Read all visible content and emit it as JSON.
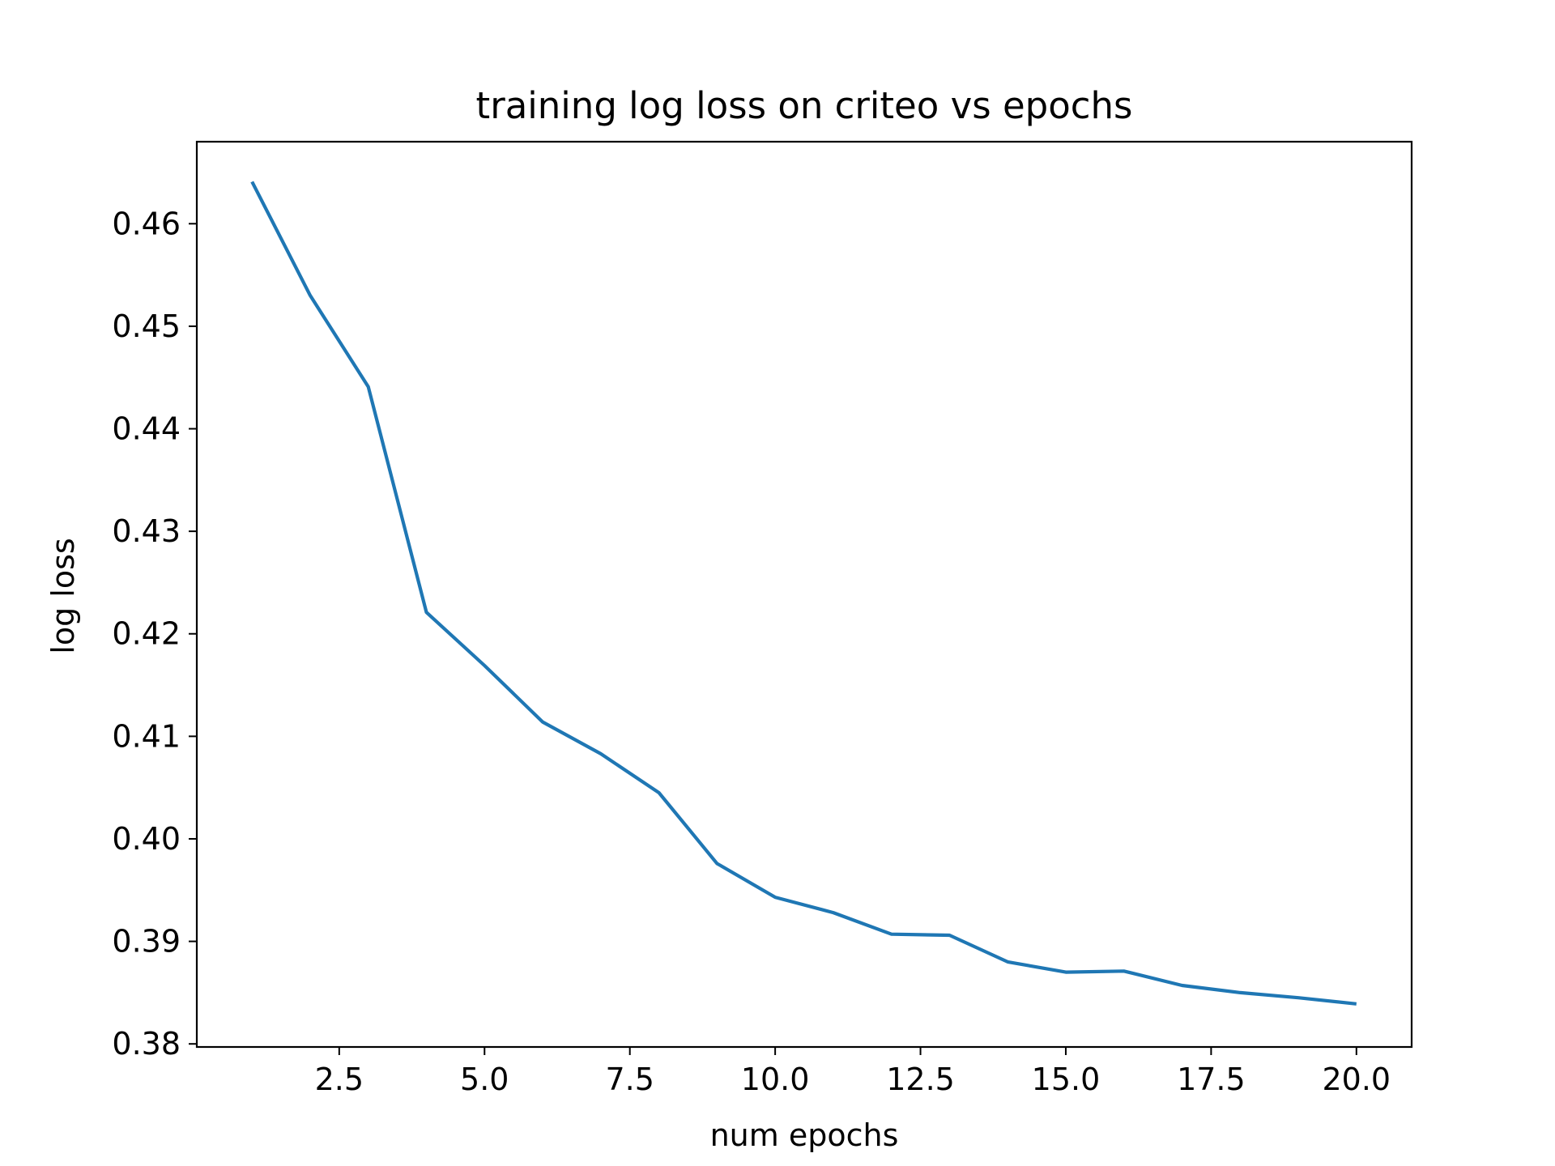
{
  "chart_data": {
    "type": "line",
    "title": "training log loss on criteo vs epochs",
    "xlabel": "num epochs",
    "ylabel": "log loss",
    "xlim": [
      0.05,
      20.95
    ],
    "ylim": [
      0.3797,
      0.468
    ],
    "xticks": [
      2.5,
      5.0,
      7.5,
      10.0,
      12.5,
      15.0,
      17.5,
      20.0
    ],
    "xtick_labels": [
      "2.5",
      "5.0",
      "7.5",
      "10.0",
      "12.5",
      "15.0",
      "17.5",
      "20.0"
    ],
    "yticks": [
      0.38,
      0.39,
      0.4,
      0.41,
      0.42,
      0.43,
      0.44,
      0.45,
      0.46
    ],
    "ytick_labels": [
      "0.38",
      "0.39",
      "0.40",
      "0.41",
      "0.42",
      "0.43",
      "0.44",
      "0.45",
      "0.46"
    ],
    "grid": false,
    "series": [
      {
        "color": "#1f77b4",
        "x": [
          1,
          2,
          3,
          4,
          5,
          6,
          7,
          8,
          9,
          10,
          11,
          12,
          13,
          14,
          15,
          16,
          17,
          18,
          19,
          20
        ],
        "y": [
          0.4641,
          0.453,
          0.4441,
          0.4221,
          0.4169,
          0.4114,
          0.4083,
          0.4045,
          0.3976,
          0.3943,
          0.3928,
          0.3907,
          0.3906,
          0.388,
          0.387,
          0.3871,
          0.3857,
          0.385,
          0.3845,
          0.3839
        ]
      }
    ]
  }
}
